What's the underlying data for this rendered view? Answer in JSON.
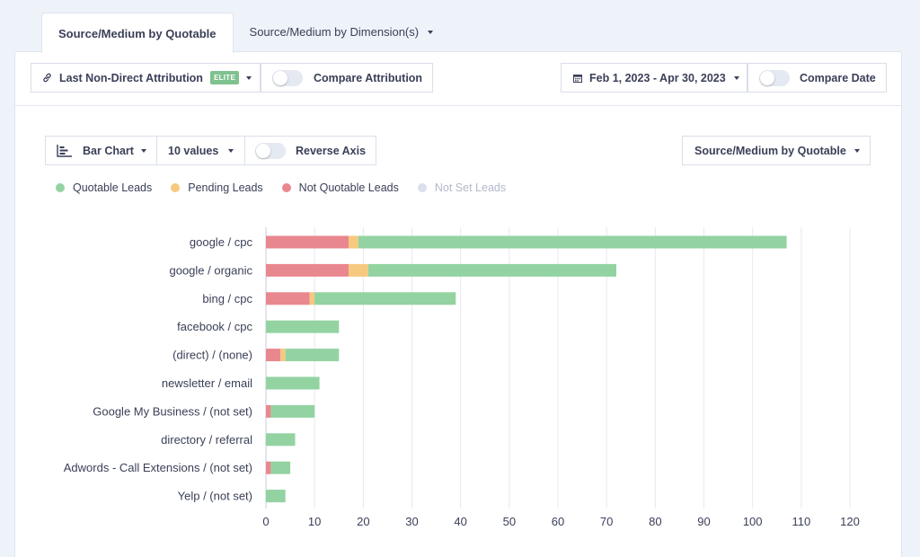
{
  "tabs": [
    {
      "label": "Source/Medium by Quotable"
    },
    {
      "label": "Source/Medium by Dimension(s)"
    }
  ],
  "toolbar": {
    "attribution_label": "Last Non-Direct Attribution",
    "attribution_badge": "ELITE",
    "compare_attribution_label": "Compare Attribution",
    "date_range_label": "Feb 1, 2023 - Apr 30, 2023",
    "compare_date_label": "Compare Date"
  },
  "chart_controls": {
    "chart_type_label": "Bar Chart",
    "values_label": "10 values",
    "reverse_axis_label": "Reverse Axis",
    "grouping_label": "Source/Medium by Quotable"
  },
  "colors": {
    "quotable": "#93d3a2",
    "pending": "#f6c97e",
    "not_quotable": "#e9878f",
    "not_set": "#dcdfec",
    "grid": "#e6e9f0",
    "axis": "#c9cede"
  },
  "chart_data": {
    "type": "bar",
    "orientation": "horizontal",
    "stacked": true,
    "categories": [
      "google / cpc",
      "google / organic",
      "bing / cpc",
      "facebook / cpc",
      "(direct) / (none)",
      "newsletter / email",
      "Google My Business / (not set)",
      "directory / referral",
      "Adwords - Call Extensions / (not set)",
      "Yelp / (not set)"
    ],
    "series": [
      {
        "name": "Not Quotable Leads",
        "key": "not_quotable",
        "values": [
          17,
          17,
          9,
          0,
          3,
          0,
          1,
          0,
          1,
          0
        ]
      },
      {
        "name": "Pending Leads",
        "key": "pending",
        "values": [
          2,
          4,
          1,
          0,
          1,
          0,
          0,
          0,
          0,
          0
        ]
      },
      {
        "name": "Quotable Leads",
        "key": "quotable",
        "values": [
          88,
          51,
          29,
          15,
          11,
          11,
          9,
          6,
          4,
          4
        ]
      },
      {
        "name": "Not Set Leads",
        "key": "not_set",
        "values": [
          0,
          0,
          0,
          0,
          0,
          0,
          0,
          0,
          0,
          0
        ]
      }
    ],
    "legend": [
      {
        "name": "Quotable Leads",
        "key": "quotable"
      },
      {
        "name": "Pending Leads",
        "key": "pending"
      },
      {
        "name": "Not Quotable Leads",
        "key": "not_quotable"
      },
      {
        "name": "Not Set Leads",
        "key": "not_set"
      }
    ],
    "x_ticks": [
      0,
      10,
      20,
      30,
      40,
      50,
      60,
      70,
      80,
      90,
      100,
      110,
      120
    ],
    "xlim": [
      0,
      120
    ],
    "xlabel": "",
    "ylabel": "",
    "grid": true,
    "legend_position": "top-left"
  }
}
